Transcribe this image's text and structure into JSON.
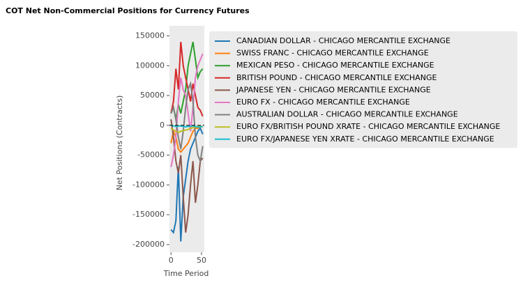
{
  "chart_data": {
    "type": "line",
    "title": "COT Net Non-Commercial Positions for Currency Futures",
    "x_label": "Time Period",
    "y_label": "Net Positions (Contracts)",
    "x": [
      0,
      4,
      8,
      12,
      16,
      20,
      24,
      28,
      32,
      36,
      40,
      44,
      48,
      52
    ],
    "series": [
      {
        "name": "CANADIAN DOLLAR - CHICAGO MERCANTILE EXCHANGE",
        "color": "#1f77b4",
        "values": [
          -175000,
          -180000,
          -160000,
          -70000,
          -195000,
          -120000,
          -90000,
          -60000,
          -40000,
          -30000,
          -20000,
          -10000,
          -5000,
          -15000
        ]
      },
      {
        "name": "SWISS FRANC - CHICAGO MERCANTILE EXCHANGE",
        "color": "#ff7f0e",
        "values": [
          -30000,
          -10000,
          -20000,
          -40000,
          -45000,
          -40000,
          -35000,
          -30000,
          -20000,
          -10000,
          -5000,
          -5000,
          -3000,
          -2000
        ]
      },
      {
        "name": "MEXICAN PESO - CHICAGO MERCANTILE EXCHANGE",
        "color": "#2ca02c",
        "values": [
          20000,
          30000,
          10000,
          35000,
          20000,
          40000,
          60000,
          100000,
          120000,
          140000,
          110000,
          80000,
          90000,
          95000
        ]
      },
      {
        "name": "BRITISH POUND - CHICAGO MERCANTILE EXCHANGE",
        "color": "#d62728",
        "values": [
          20000,
          40000,
          95000,
          60000,
          140000,
          100000,
          80000,
          60000,
          40000,
          70000,
          50000,
          30000,
          25000,
          15000
        ]
      },
      {
        "name": "JAPANESE YEN - CHICAGO MERCANTILE EXCHANGE",
        "color": "#8c564b",
        "values": [
          10000,
          -20000,
          -60000,
          -80000,
          -50000,
          -120000,
          -180000,
          -150000,
          -100000,
          -60000,
          -130000,
          -100000,
          -60000,
          -55000
        ]
      },
      {
        "name": "EURO FX - CHICAGO MERCANTILE EXCHANGE",
        "color": "#e377c2",
        "values": [
          -70000,
          -50000,
          -20000,
          40000,
          80000,
          60000,
          50000,
          20000,
          -10000,
          30000,
          80000,
          100000,
          110000,
          120000
        ]
      },
      {
        "name": "AUSTRALIAN DOLLAR - CHICAGO MERCANTILE EXCHANGE",
        "color": "#7f7f7f",
        "values": [
          20000,
          30000,
          10000,
          -20000,
          -40000,
          -10000,
          30000,
          60000,
          70000,
          40000,
          -20000,
          -50000,
          -60000,
          -35000
        ]
      },
      {
        "name": "EURO FX/BRITISH POUND XRATE - CHICAGO MERCANTILE EXCHANGE",
        "color": "#bcbd22",
        "values": [
          -5000,
          -8000,
          -10000,
          -12000,
          -10000,
          -9000,
          -8000,
          -7000,
          -5000,
          -4000,
          -3000,
          -2000,
          -1000,
          -3000
        ]
      },
      {
        "name": "EURO FX/JAPANESE YEN XRATE - CHICAGO MERCANTILE EXCHANGE",
        "color": "#17becf",
        "values": [
          0,
          -1000,
          -2000,
          -1500,
          -1000,
          -2000,
          -2500,
          -2000,
          -1500,
          -1000,
          -2000,
          -3000,
          -2500,
          -2000
        ]
      }
    ],
    "hline": 0,
    "xlim": [
      -2.6,
      54.6
    ],
    "xticks": [
      0,
      50
    ],
    "ylim": [
      -213000,
      167000
    ],
    "yticks": [
      -200000,
      -150000,
      -100000,
      -50000,
      0,
      50000,
      100000,
      150000
    ],
    "legend": "outside-right"
  }
}
